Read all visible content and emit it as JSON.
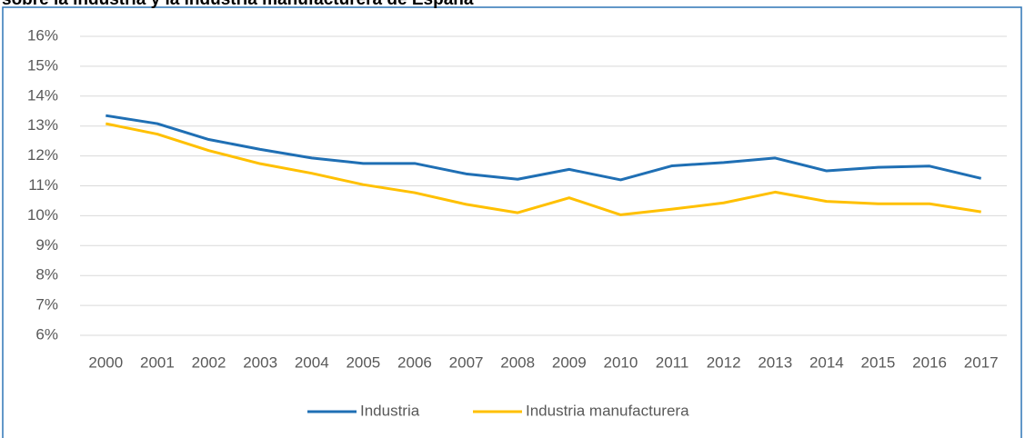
{
  "chart_data": {
    "type": "line",
    "title": "sobre la industria y la industria manufacturera de España",
    "categories": [
      "2000",
      "2001",
      "2002",
      "2003",
      "2004",
      "2005",
      "2006",
      "2007",
      "2008",
      "2009",
      "2010",
      "2011",
      "2012",
      "2013",
      "2014",
      "2015",
      "2016",
      "2017"
    ],
    "series": [
      {
        "name": "Industria",
        "color": "#1f6fb4",
        "values": [
          13.35,
          13.08,
          12.55,
          12.22,
          11.93,
          11.75,
          11.75,
          11.4,
          11.22,
          11.55,
          11.2,
          11.67,
          11.78,
          11.93,
          11.5,
          11.62,
          11.66,
          11.25
        ]
      },
      {
        "name": "Industria manufacturera",
        "color": "#ffc000",
        "values": [
          13.08,
          12.73,
          12.18,
          11.74,
          11.42,
          11.04,
          10.77,
          10.38,
          10.1,
          10.6,
          10.03,
          10.22,
          10.43,
          10.79,
          10.48,
          10.4,
          10.4,
          10.13
        ]
      }
    ],
    "ylim": [
      6,
      16
    ],
    "yticks": [
      {
        "value": 6,
        "label": "6%"
      },
      {
        "value": 7,
        "label": "7%"
      },
      {
        "value": 8,
        "label": "8%"
      },
      {
        "value": 9,
        "label": "9%"
      },
      {
        "value": 10,
        "label": "10%"
      },
      {
        "value": 11,
        "label": "11%"
      },
      {
        "value": 12,
        "label": "12%"
      },
      {
        "value": 13,
        "label": "13%"
      },
      {
        "value": 14,
        "label": "14%"
      },
      {
        "value": 15,
        "label": "15%"
      },
      {
        "value": 16,
        "label": "16%"
      }
    ],
    "grid": true,
    "legend": "bottom"
  }
}
